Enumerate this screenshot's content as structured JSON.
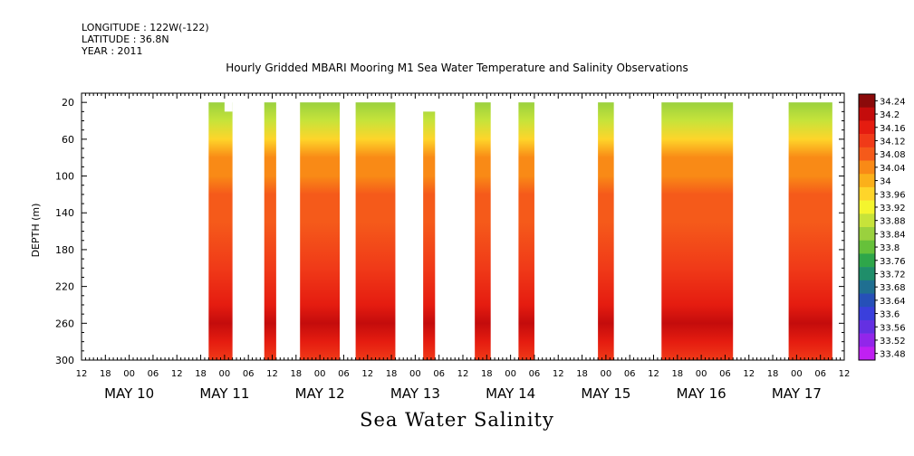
{
  "header": {
    "longitude": "LONGITUDE : 122W(-122)",
    "latitude": "LATITUDE : 36.8N",
    "year": "YEAR : 2011"
  },
  "title": "Hourly Gridded MBARI Mooring M1 Sea Water Temperature and Salinity Observations",
  "bottom_label": "Sea Water Salinity",
  "chart_data": {
    "type": "heatmap",
    "variable": "Sea Water Salinity",
    "ylabel": "DEPTH (m)",
    "y_reversed": true,
    "ylim": [
      10,
      300
    ],
    "yticks": [
      20,
      60,
      100,
      140,
      180,
      220,
      260,
      300
    ],
    "xlim": [
      "2011-05-09 12:00",
      "2011-05-17 12:00"
    ],
    "hour_ticks": [
      "12",
      "18",
      "00",
      "06",
      "12",
      "18",
      "00",
      "06",
      "12",
      "18",
      "00",
      "06",
      "12",
      "18",
      "00",
      "06",
      "12",
      "18",
      "00",
      "06",
      "12",
      "18",
      "00",
      "06",
      "12",
      "18",
      "00",
      "06",
      "12",
      "18",
      "00",
      "06",
      "12"
    ],
    "date_labels": [
      {
        "label": "MAY 10",
        "at": "2011-05-10 00:00"
      },
      {
        "label": "MAY 11",
        "at": "2011-05-11 00:00"
      },
      {
        "label": "MAY 12",
        "at": "2011-05-12 00:00"
      },
      {
        "label": "MAY 13",
        "at": "2011-05-13 00:00"
      },
      {
        "label": "MAY 14",
        "at": "2011-05-14 00:00"
      },
      {
        "label": "MAY 15",
        "at": "2011-05-15 00:00"
      },
      {
        "label": "MAY 16",
        "at": "2011-05-16 00:00"
      },
      {
        "label": "MAY 17",
        "at": "2011-05-17 00:00"
      }
    ],
    "colorbar": {
      "labels": [
        "34.24",
        "34.2",
        "34.16",
        "34.12",
        "34.08",
        "34.04",
        "34",
        "33.96",
        "33.92",
        "33.88",
        "33.84",
        "33.8",
        "33.76",
        "33.72",
        "33.68",
        "33.64",
        "33.6",
        "33.56",
        "33.52",
        "33.48"
      ],
      "colors": [
        "#8b0a0a",
        "#c40c0c",
        "#e51c10",
        "#f03a18",
        "#f55a1a",
        "#f98a16",
        "#fbb01a",
        "#fed52a",
        "#f4f52e",
        "#c7e33a",
        "#9ad13e",
        "#66c13a",
        "#2ea64a",
        "#1f8e6a",
        "#1f6f91",
        "#2650b8",
        "#3a3fdc",
        "#6430e2",
        "#9226ea",
        "#c020f2"
      ]
    },
    "segments": [
      {
        "start": "2011-05-10 20:00",
        "end": "2011-05-11 02:00",
        "top_depth": 20,
        "notch": {
          "from": "2011-05-11 00:00",
          "to": "2011-05-11 02:00",
          "top_depth": 30
        }
      },
      {
        "start": "2011-05-11 10:00",
        "end": "2011-05-11 13:00",
        "top_depth": 20
      },
      {
        "start": "2011-05-11 19:00",
        "end": "2011-05-12 05:00",
        "top_depth": 20
      },
      {
        "start": "2011-05-12 09:00",
        "end": "2011-05-12 19:00",
        "top_depth": 20
      },
      {
        "start": "2011-05-13 02:00",
        "end": "2011-05-13 05:00",
        "top_depth": 30
      },
      {
        "start": "2011-05-13 15:00",
        "end": "2011-05-13 19:00",
        "top_depth": 20
      },
      {
        "start": "2011-05-14 02:00",
        "end": "2011-05-14 06:00",
        "top_depth": 20
      },
      {
        "start": "2011-05-14 22:00",
        "end": "2011-05-15 02:00",
        "top_depth": 20
      },
      {
        "start": "2011-05-15 14:00",
        "end": "2011-05-16 08:00",
        "top_depth": 20
      },
      {
        "start": "2011-05-16 22:00",
        "end": "2011-05-17 09:00",
        "top_depth": 20
      }
    ],
    "salinity_profile": [
      {
        "depth": 20,
        "value": 33.84
      },
      {
        "depth": 40,
        "value": 33.9
      },
      {
        "depth": 60,
        "value": 33.97
      },
      {
        "depth": 80,
        "value": 34.03
      },
      {
        "depth": 100,
        "value": 34.04
      },
      {
        "depth": 120,
        "value": 34.06
      },
      {
        "depth": 150,
        "value": 34.09
      },
      {
        "depth": 200,
        "value": 34.11
      },
      {
        "depth": 240,
        "value": 34.16
      },
      {
        "depth": 260,
        "value": 34.2
      },
      {
        "depth": 280,
        "value": 34.17
      },
      {
        "depth": 300,
        "value": 34.13
      }
    ]
  }
}
